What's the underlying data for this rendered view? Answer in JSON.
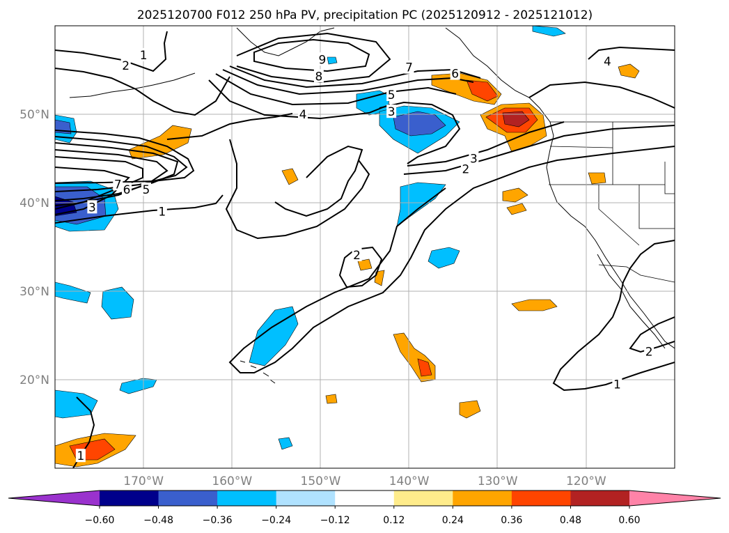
{
  "chart_data": {
    "type": "contour_map",
    "title": "2025120700 F012 250 hPa PV, precipitation PC (2025120912 - 2025121012)",
    "projection": "PlateCarree",
    "extent": {
      "lon": [
        -180,
        -110
      ],
      "lat": [
        10,
        60
      ]
    },
    "grid": true,
    "x_ticks": [
      {
        "value": -170,
        "label": "170°W"
      },
      {
        "value": -160,
        "label": "160°W"
      },
      {
        "value": -150,
        "label": "150°W"
      },
      {
        "value": -140,
        "label": "140°W"
      },
      {
        "value": -130,
        "label": "130°W"
      },
      {
        "value": -120,
        "label": "120°W"
      }
    ],
    "y_ticks": [
      {
        "value": 50,
        "label": "50°N"
      },
      {
        "value": 40,
        "label": "40°N"
      },
      {
        "value": 30,
        "label": "30°N"
      },
      {
        "value": 20,
        "label": "20°N"
      }
    ],
    "colorbar": {
      "levels": [
        -0.6,
        -0.48,
        -0.36,
        -0.24,
        -0.12,
        0.12,
        0.24,
        0.36,
        0.48,
        0.6
      ],
      "tick_labels": [
        "−0.60",
        "−0.48",
        "−0.36",
        "−0.24",
        "−0.12",
        "0.12",
        "0.24",
        "0.36",
        "0.48",
        "0.60"
      ],
      "colors": [
        "#9a32cd",
        "#00008b",
        "#3a5fcd",
        "#00bfff",
        "#b0e2ff",
        "#ffffff",
        "#ffec8b",
        "#ffa500",
        "#ff4500",
        "#b22222",
        "#ff83a8"
      ],
      "extend": "both"
    },
    "contour_levels": [
      1,
      2,
      3,
      4,
      5,
      6,
      7,
      8,
      9
    ],
    "contour_labels": [
      {
        "text": "1",
        "lon": -170,
        "lat": 56.7
      },
      {
        "text": "2",
        "lon": -172,
        "lat": 55.5
      },
      {
        "text": "9",
        "lon": -149.8,
        "lat": 56.2
      },
      {
        "text": "8",
        "lon": -150.2,
        "lat": 54.3
      },
      {
        "text": "7",
        "lon": -140,
        "lat": 55.3
      },
      {
        "text": "6",
        "lon": -134.8,
        "lat": 54.6
      },
      {
        "text": "5",
        "lon": -142,
        "lat": 52.2
      },
      {
        "text": "4",
        "lon": -152,
        "lat": 50.0
      },
      {
        "text": "3",
        "lon": -142,
        "lat": 50.3
      },
      {
        "text": "3",
        "lon": -132.7,
        "lat": 45.0
      },
      {
        "text": "2",
        "lon": -133.6,
        "lat": 43.8
      },
      {
        "text": "4",
        "lon": -117.6,
        "lat": 56.0
      },
      {
        "text": "7",
        "lon": -172.9,
        "lat": 42.1
      },
      {
        "text": "6",
        "lon": -171.9,
        "lat": 41.5
      },
      {
        "text": "5",
        "lon": -169.7,
        "lat": 41.5
      },
      {
        "text": "3",
        "lon": -175.8,
        "lat": 39.5
      },
      {
        "text": "1",
        "lon": -167.9,
        "lat": 39.0
      },
      {
        "text": "2",
        "lon": -145.9,
        "lat": 34.1
      },
      {
        "text": "2",
        "lon": -112.9,
        "lat": 23.2
      },
      {
        "text": "1",
        "lon": -116.5,
        "lat": 19.5
      },
      {
        "text": "1",
        "lon": -177.1,
        "lat": 11.4
      }
    ]
  }
}
